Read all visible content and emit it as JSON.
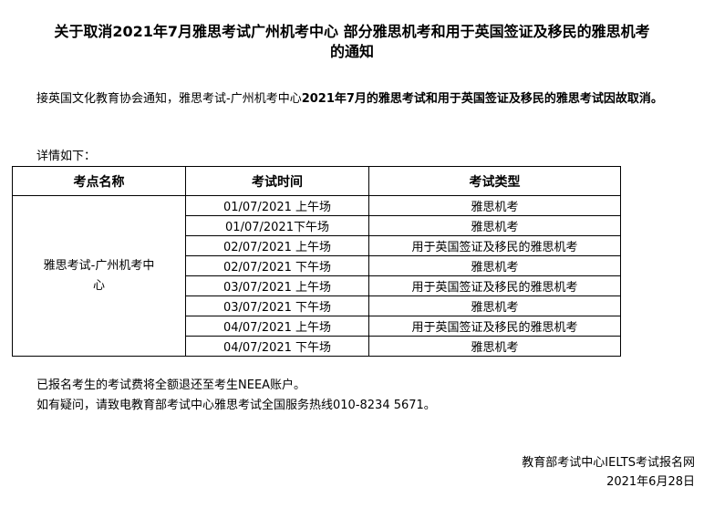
{
  "title_line1": "关于取消2021年7月雅思考试广州机考中心 部分雅思机考和用于英国签证及移民的雅思机考",
  "title_line2": "的通知",
  "intro_normal": "接英国文化教育协会通知，雅思考试-广州机考中心",
  "intro_bold": "2021年7月的雅思考试和用于英国签证及移民的雅思考试因故取消。",
  "details_label": "详情如下：",
  "table": {
    "headers": [
      "考点名称",
      "考试时间",
      "考试类型"
    ],
    "venue": "雅思考试-广州机考中心",
    "rows": [
      {
        "time": "01/07/2021 上午场",
        "type": "雅思机考"
      },
      {
        "time": "01/07/2021下午场",
        "type": "雅思机考"
      },
      {
        "time": "02/07/2021 上午场",
        "type": "用于英国签证及移民的雅思机考"
      },
      {
        "time": "02/07/2021 下午场",
        "type": "雅思机考"
      },
      {
        "time": "03/07/2021 上午场",
        "type": "用于英国签证及移民的雅思机考"
      },
      {
        "time": "03/07/2021 下午场",
        "type": "雅思机考"
      },
      {
        "time": "04/07/2021 上午场",
        "type": "用于英国签证及移民的雅思机考"
      },
      {
        "time": "04/07/2021 下午场",
        "type": "雅思机考"
      }
    ]
  },
  "refund_note": "已报名考生的考试费将全额退还至考生NEEA账户。",
  "contact_note": "如有疑问，请致电教育部考试中心雅思考试全国服务热线010-8234 5671。",
  "signature": "教育部考试中心IELTS考试报名网",
  "date": "2021年6月28日"
}
